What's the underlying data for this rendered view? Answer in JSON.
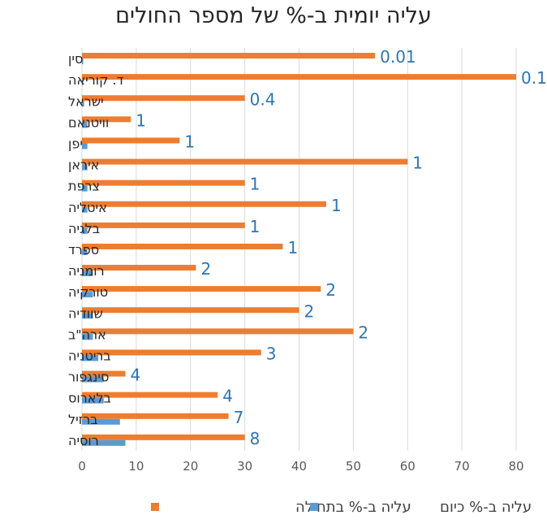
{
  "chart_data": {
    "type": "bar",
    "orientation": "horizontal",
    "title": "עליה יומית ב-% של מספר החולים",
    "categories": [
      "סין",
      "ד. קוריאה",
      "ישראל",
      "וויטנאם",
      "יפן",
      "איראן",
      "צרפת",
      "איטליה",
      "בלגיה",
      "ספרד",
      "רומניה",
      "טורקיה",
      "שוודיה",
      "ארה\"ב",
      "בריטניה",
      "סינגפור",
      "בלארוס",
      "ברזיל",
      "רוסיה"
    ],
    "series": [
      {
        "name": "עליה ב-% בתחילה",
        "color": "#ed7d31",
        "values": [
          54,
          80,
          30,
          9,
          18,
          60,
          30,
          45,
          30,
          37,
          21,
          44,
          40,
          50,
          33,
          8,
          25,
          27,
          30
        ]
      },
      {
        "name": "עליה ב-% כיום",
        "color": "#5b9bd5",
        "values": [
          0.01,
          0.1,
          0.4,
          1,
          1,
          1,
          1,
          1,
          1,
          1,
          2,
          2,
          2,
          2,
          3,
          4,
          4,
          7,
          8
        ]
      }
    ],
    "data_labels": [
      "0.01",
      "0.1",
      "0.4",
      "1",
      "1",
      "1",
      "1",
      "1",
      "1",
      "1",
      "2",
      "2",
      "2",
      "2",
      "3",
      "4",
      "4",
      "7",
      "8"
    ],
    "xlim": [
      0,
      80
    ],
    "xticks": [
      "0",
      "10",
      "20",
      "30",
      "40",
      "50",
      "60",
      "70",
      "80"
    ],
    "grid": true,
    "legend_position": "bottom"
  }
}
